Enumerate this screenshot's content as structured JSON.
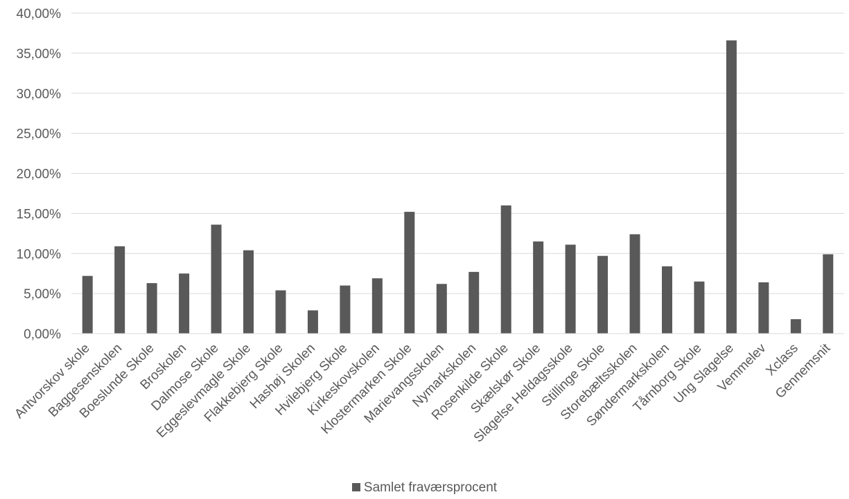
{
  "chart_data": {
    "type": "bar",
    "categories": [
      "Antvorskov skole",
      "Baggesenskolen",
      "Boeslunde Skole",
      "Broskolen",
      "Dalmose Skole",
      "Eggeslevmagle Skole",
      "Flakkebjerg Skole",
      "Hashøj Skolen",
      "Hvilebjerg Skole",
      "Kirkeskovskolen",
      "Klostermarken Skole",
      "Marievangsskolen",
      "Nymarkskolen",
      "Rosenkilde Skole",
      "Skælskør Skole",
      "Slagelse Heldagsskole",
      "Stillinge Skole",
      "Storebæltsskolen",
      "Søndermarkskolen",
      "Tårnborg Skole",
      "Ung Slagelse",
      "Vemmelev",
      "Xclass",
      "Gennemsnit"
    ],
    "series": [
      {
        "name": "Samlet fraværsprocent",
        "values": [
          7.2,
          10.9,
          6.3,
          7.5,
          13.6,
          10.4,
          5.4,
          2.9,
          6.0,
          6.9,
          15.2,
          6.2,
          7.7,
          16.0,
          11.5,
          11.1,
          9.7,
          12.4,
          8.4,
          6.5,
          36.6,
          6.4,
          1.8,
          9.9
        ],
        "color": "#595959"
      }
    ],
    "y_ticks": [
      "0,00%",
      "5,00%",
      "10,00%",
      "15,00%",
      "20,00%",
      "25,00%",
      "30,00%",
      "35,00%",
      "40,00%"
    ],
    "ylim": [
      0,
      40
    ],
    "grid": true,
    "legend_position": "bottom",
    "title": "",
    "xlabel": "",
    "ylabel": ""
  },
  "legend": {
    "label": "Samlet fraværsprocent"
  }
}
